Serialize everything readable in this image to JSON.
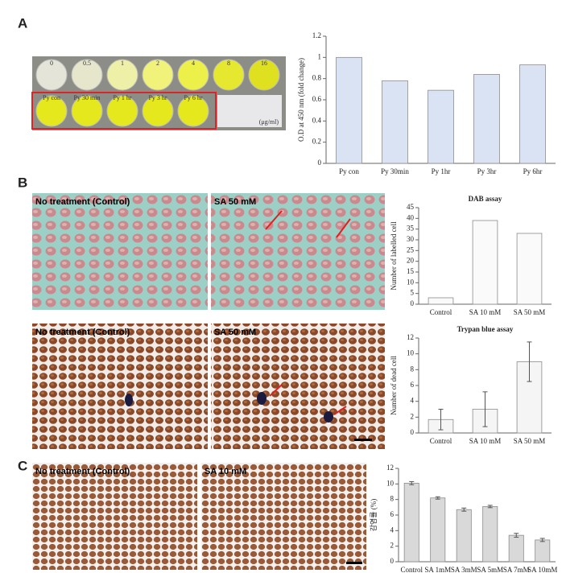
{
  "panel_labels": [
    "A",
    "B",
    "C"
  ],
  "plate": {
    "concentrations": [
      "0",
      "0.5",
      "1",
      "2",
      "4",
      "8",
      "16"
    ],
    "samples": [
      "Py con",
      "Py 30 min",
      "Py 1 hr",
      "Py 3 hr",
      "Py 6 hr"
    ],
    "unit": "(μg/ml)"
  },
  "images": [
    "No treatment (Control)",
    "SA 50 mM",
    "No treatment (Control)",
    "SA 50 mM",
    "No treatment (Control)",
    "SA 10 mM"
  ],
  "chart_data": [
    {
      "type": "bar",
      "y_label": "O.D at 450 nm (fold change)",
      "categories": [
        "Py con",
        "Py 30min",
        "Py 1hr",
        "Py 3hr",
        "Py 6hr"
      ],
      "values": [
        1,
        0.78,
        0.69,
        0.84,
        0.93
      ],
      "color": "#dae3f3",
      "ylim": [
        0,
        1.2
      ],
      "yticks": [
        0,
        0.2,
        0.4,
        0.6,
        0.8,
        1,
        1.2
      ]
    },
    {
      "type": "bar",
      "title": "DAB assay",
      "y_label": "Number of labelled cell",
      "categories": [
        "Control",
        "SA 10 mM",
        "SA 50 mM"
      ],
      "values": [
        3,
        39,
        33
      ],
      "color": "#fafafa",
      "ylim": [
        0,
        45
      ],
      "yticks": [
        0,
        5,
        10,
        15,
        20,
        25,
        30,
        35,
        40,
        45
      ]
    },
    {
      "type": "bar",
      "title": "Trypan blue assay",
      "y_label": "Number of dead cell",
      "categories": [
        "Control",
        "SA 10 mM",
        "SA 50 mM"
      ],
      "values": [
        1.7,
        3,
        9
      ],
      "errors": [
        1.3,
        2.2,
        2.5
      ],
      "color": "#f5f5f5",
      "ylim": [
        0,
        12
      ],
      "yticks": [
        0,
        2,
        4,
        6,
        8,
        10,
        12
      ]
    },
    {
      "type": "bar",
      "y_label": "감염률 (%)",
      "categories": [
        "Control",
        "SA 1mM",
        "SA 3mM",
        "SA 5mM",
        "SA 7mM",
        "SA 10mM"
      ],
      "values": [
        10.1,
        8.2,
        6.7,
        7.1,
        3.4,
        2.8
      ],
      "errors": [
        0.2,
        0.15,
        0.2,
        0.15,
        0.25,
        0.2
      ],
      "color": "#d9d9d9",
      "ylim": [
        0,
        12
      ],
      "yticks": [
        0,
        2,
        4,
        6,
        8,
        10,
        12
      ]
    }
  ]
}
